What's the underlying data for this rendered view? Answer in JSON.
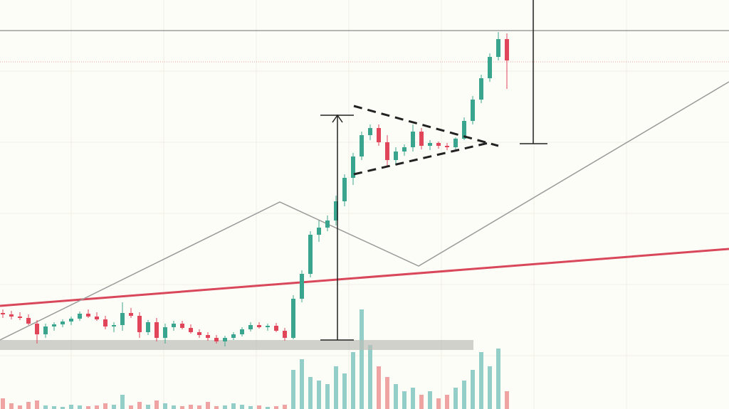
{
  "chart_data": {
    "type": "candlestick",
    "ylim": [
      0,
      575
    ],
    "y2lim": [
      0,
      150
    ],
    "up_color": "#3aa58f",
    "down_color": "#e0455a",
    "volume_up_color": "#93cfc8",
    "volume_down_color": "#f0a3a3",
    "candles": [
      [
        135,
        140,
        128,
        133
      ],
      [
        133,
        138,
        126,
        130
      ],
      [
        130,
        136,
        125,
        128
      ],
      [
        128,
        133,
        118,
        120
      ],
      [
        120,
        125,
        92,
        105
      ],
      [
        105,
        120,
        100,
        116
      ],
      [
        116,
        122,
        110,
        119
      ],
      [
        119,
        126,
        115,
        123
      ],
      [
        123,
        130,
        118,
        127
      ],
      [
        127,
        137,
        124,
        134
      ],
      [
        134,
        140,
        128,
        130
      ],
      [
        130,
        136,
        124,
        126
      ],
      [
        126,
        131,
        112,
        116
      ],
      [
        116,
        122,
        108,
        118
      ],
      [
        118,
        150,
        110,
        135
      ],
      [
        135,
        142,
        128,
        131
      ],
      [
        131,
        136,
        100,
        108
      ],
      [
        108,
        125,
        104,
        122
      ],
      [
        122,
        128,
        95,
        100
      ],
      [
        100,
        120,
        92,
        115
      ],
      [
        115,
        124,
        110,
        120
      ],
      [
        120,
        124,
        112,
        114
      ],
      [
        114,
        119,
        106,
        108
      ],
      [
        108,
        112,
        100,
        104
      ],
      [
        104,
        108,
        96,
        100
      ],
      [
        100,
        104,
        92,
        95
      ],
      [
        95,
        103,
        88,
        100
      ],
      [
        100,
        108,
        97,
        105
      ],
      [
        105,
        115,
        102,
        112
      ],
      [
        112,
        122,
        109,
        118
      ],
      [
        118,
        122,
        113,
        115
      ],
      [
        115,
        120,
        110,
        117
      ],
      [
        117,
        121,
        108,
        110
      ],
      [
        110,
        114,
        96,
        100
      ],
      [
        100,
        160,
        98,
        155
      ],
      [
        155,
        195,
        150,
        190
      ],
      [
        190,
        250,
        185,
        245
      ],
      [
        245,
        265,
        235,
        255
      ],
      [
        255,
        272,
        250,
        265
      ],
      [
        265,
        300,
        258,
        292
      ],
      [
        292,
        330,
        285,
        325
      ],
      [
        325,
        360,
        315,
        355
      ],
      [
        355,
        390,
        350,
        385
      ],
      [
        385,
        400,
        378,
        395
      ],
      [
        395,
        400,
        370,
        375
      ],
      [
        375,
        385,
        340,
        350
      ],
      [
        350,
        368,
        345,
        362
      ],
      [
        362,
        372,
        356,
        368
      ],
      [
        368,
        400,
        362,
        390
      ],
      [
        390,
        395,
        365,
        370
      ],
      [
        370,
        378,
        364,
        374
      ],
      [
        374,
        376,
        366,
        370
      ],
      [
        370,
        374,
        364,
        368
      ],
      [
        368,
        382,
        365,
        380
      ],
      [
        380,
        410,
        378,
        405
      ],
      [
        405,
        440,
        400,
        435
      ],
      [
        435,
        470,
        430,
        465
      ],
      [
        465,
        500,
        460,
        495
      ],
      [
        495,
        530,
        490,
        520
      ],
      [
        520,
        528,
        450,
        490
      ]
    ],
    "volume": [
      15,
      8,
      5,
      10,
      12,
      5,
      4,
      3,
      6,
      5,
      4,
      5,
      8,
      6,
      20,
      5,
      10,
      6,
      12,
      8,
      5,
      4,
      6,
      5,
      10,
      4,
      5,
      8,
      6,
      4,
      5,
      3,
      4,
      6,
      55,
      70,
      45,
      40,
      35,
      60,
      50,
      80,
      140,
      90,
      60,
      45,
      35,
      25,
      30,
      20,
      25,
      15,
      20,
      30,
      40,
      55,
      80,
      60,
      85,
      25
    ]
  }
}
